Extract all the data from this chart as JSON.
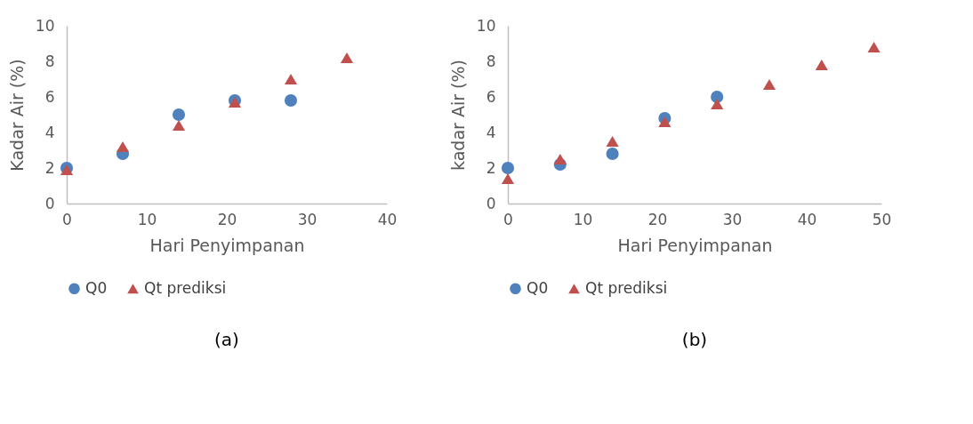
{
  "chart_data": [
    {
      "type": "scatter",
      "xlabel": "Hari Penyimpanan",
      "ylabel": "Kadar Air (%)",
      "annotations": [
        "(a)"
      ],
      "xlim": [
        0,
        40
      ],
      "xticks": [
        0,
        10,
        20,
        30,
        40
      ],
      "ylim": [
        0,
        10
      ],
      "yticks": [
        0,
        2,
        4,
        6,
        8,
        10
      ],
      "grid": false,
      "legend": "bottom",
      "series": [
        {
          "name": "Q0",
          "color": "#4f81bd",
          "marker": "circle",
          "x": [
            0,
            7,
            14,
            21,
            28
          ],
          "values": [
            2,
            2.8,
            5,
            5.8,
            5.8
          ]
        },
        {
          "name": "Qt prediksi",
          "color": "#c0504d",
          "marker": "triangle",
          "x": [
            0,
            7,
            14,
            21,
            28,
            35
          ],
          "values": [
            1.9,
            3.2,
            4.4,
            5.7,
            7,
            8.2
          ]
        }
      ]
    },
    {
      "type": "scatter",
      "xlabel": "Hari Penyimpanan",
      "ylabel": "kadar Air (%)",
      "annotations": [
        "(b)"
      ],
      "xlim": [
        0,
        50
      ],
      "xticks": [
        0,
        10,
        20,
        30,
        40,
        50
      ],
      "ylim": [
        0,
        10
      ],
      "yticks": [
        0,
        2,
        4,
        6,
        8,
        10
      ],
      "grid": false,
      "legend": "bottom",
      "series": [
        {
          "name": "Q0",
          "color": "#4f81bd",
          "marker": "circle",
          "x": [
            0,
            7,
            14,
            21,
            28
          ],
          "values": [
            2,
            2.2,
            2.8,
            4.8,
            6
          ]
        },
        {
          "name": "Qt prediksi",
          "color": "#c0504d",
          "marker": "triangle",
          "x": [
            0,
            7,
            14,
            21,
            28,
            35,
            42,
            49
          ],
          "values": [
            1.4,
            2.5,
            3.5,
            4.6,
            5.6,
            6.7,
            7.8,
            8.8
          ]
        }
      ]
    }
  ]
}
